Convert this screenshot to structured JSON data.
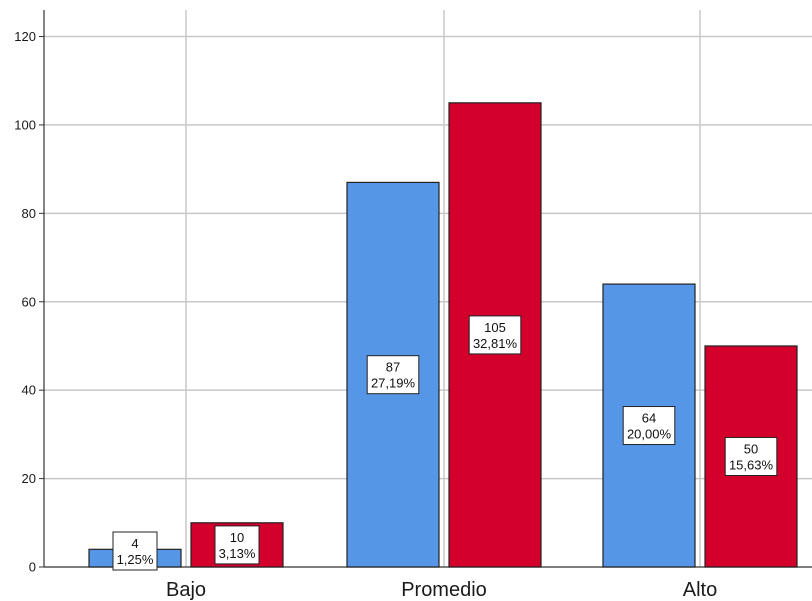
{
  "chart_data": {
    "type": "bar",
    "categories": [
      "Bajo",
      "Promedio",
      "Alto"
    ],
    "series": [
      {
        "color": "#5596e6",
        "values": [
          4,
          87,
          64
        ],
        "labels": [
          [
            "4",
            "1,25%"
          ],
          [
            "87",
            "27,19%"
          ],
          [
            "64",
            "20,00%"
          ]
        ]
      },
      {
        "color": "#d2002b",
        "values": [
          10,
          105,
          50
        ],
        "labels": [
          [
            "10",
            "3,13%"
          ],
          [
            "105",
            "32,81%"
          ],
          [
            "50",
            "15,63%"
          ]
        ]
      }
    ],
    "yticks": [
      "0",
      "20",
      "40",
      "60",
      "80",
      "100",
      "120"
    ],
    "ylim": [
      0,
      126
    ],
    "grid": true,
    "legend": "none"
  }
}
